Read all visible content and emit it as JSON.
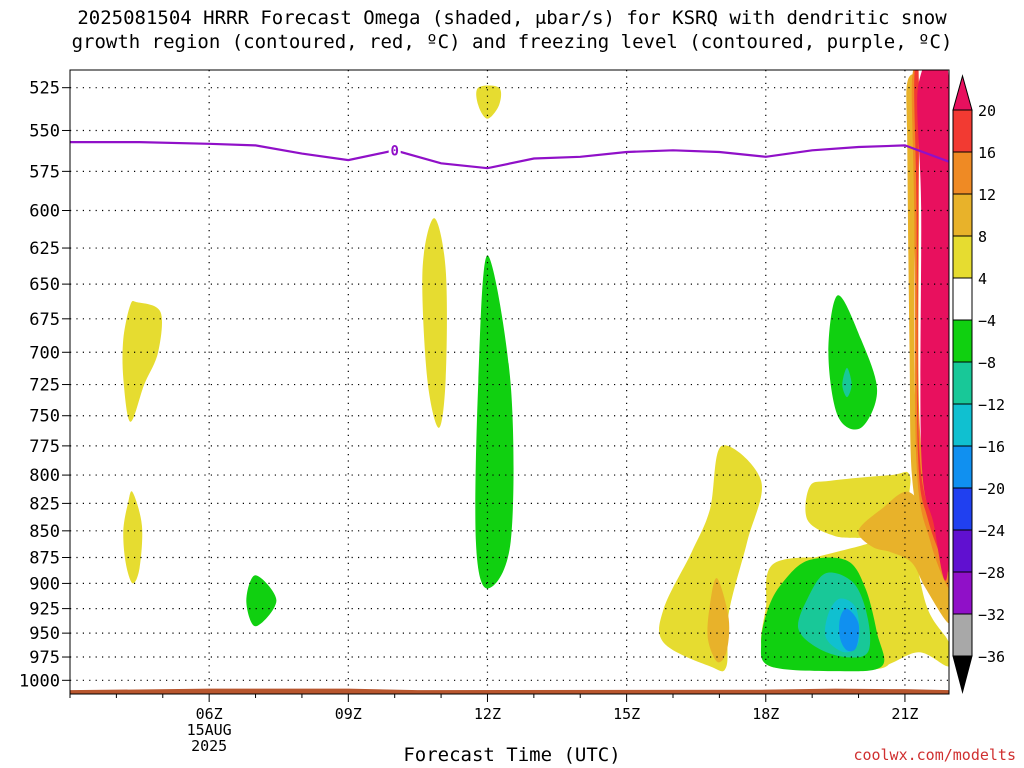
{
  "title": "2025081504 HRRR Forecast Omega (shaded, μbar/s) for KSRQ with dendritic snow\ngrowth region (contoured, red, ºC) and freezing level (contoured, purple, ºC)",
  "credit": "coolwx.com/modelts",
  "chart_data": {
    "type": "time-height contour",
    "xlabel": "Forecast Time (UTC)",
    "ylabel": "",
    "x_ticks": [
      "06Z",
      "09Z",
      "12Z",
      "15Z",
      "18Z",
      "21Z"
    ],
    "x_date_label": [
      "15AUG",
      "2025"
    ],
    "x_range_hours": [
      3.0,
      21.95
    ],
    "x_tick_hours": [
      6,
      9,
      12,
      15,
      18,
      21
    ],
    "y_ticks": [
      525,
      550,
      575,
      600,
      625,
      650,
      675,
      700,
      725,
      750,
      775,
      800,
      825,
      850,
      875,
      900,
      925,
      950,
      975,
      1000
    ],
    "y_range_hPa": [
      515,
      1015
    ],
    "y_log_scale": true,
    "grid": true,
    "colorbar": {
      "ticks": [
        "20",
        "16",
        "12",
        "8",
        "4",
        "−4",
        "−8",
        "−12",
        "−16",
        "−20",
        "−24",
        "−28",
        "−32",
        "−36"
      ],
      "colors": [
        "#e8105e",
        "#f23a32",
        "#ef8a24",
        "#e8b22a",
        "#e6dc30",
        "#ffffff",
        "#10d010",
        "#18c898",
        "#10c0d0",
        "#1090f0",
        "#2040f0",
        "#6010d0",
        "#9010c8",
        "#a8a8a8",
        "#000000"
      ]
    },
    "freezing_level": {
      "label": "0",
      "color": "#9010c8",
      "points": [
        [
          3.0,
          557
        ],
        [
          4.5,
          557
        ],
        [
          6.0,
          558
        ],
        [
          7.0,
          559
        ],
        [
          8.0,
          564
        ],
        [
          9.0,
          568
        ],
        [
          10.0,
          562
        ],
        [
          11.0,
          570
        ],
        [
          12.0,
          573
        ],
        [
          13.0,
          567
        ],
        [
          14.0,
          566
        ],
        [
          15.0,
          563
        ],
        [
          16.0,
          562
        ],
        [
          17.0,
          563
        ],
        [
          18.0,
          566
        ],
        [
          19.0,
          562
        ],
        [
          20.0,
          560
        ],
        [
          21.0,
          559
        ],
        [
          21.95,
          569
        ]
      ]
    },
    "omega_regions": [
      {
        "level": "4",
        "color": "#e6dc30",
        "points": [
          [
            4.45,
            663
          ],
          [
            4.95,
            670
          ],
          [
            4.9,
            700
          ],
          [
            4.6,
            725
          ],
          [
            4.3,
            755
          ],
          [
            4.15,
            720
          ],
          [
            4.15,
            690
          ],
          [
            4.3,
            665
          ]
        ]
      },
      {
        "level": "4",
        "color": "#e6dc30",
        "points": [
          [
            4.35,
            815
          ],
          [
            4.55,
            845
          ],
          [
            4.5,
            885
          ],
          [
            4.35,
            900
          ],
          [
            4.2,
            880
          ],
          [
            4.15,
            850
          ],
          [
            4.25,
            825
          ]
        ]
      },
      {
        "level": "4",
        "color": "#e6dc30",
        "points": [
          [
            11.8,
            525
          ],
          [
            12.25,
            525
          ],
          [
            12.25,
            535
          ],
          [
            12.0,
            543
          ],
          [
            11.8,
            535
          ]
        ]
      },
      {
        "level": "4",
        "color": "#e6dc30",
        "points": [
          [
            10.85,
            605
          ],
          [
            11.1,
            640
          ],
          [
            11.1,
            720
          ],
          [
            10.95,
            760
          ],
          [
            10.7,
            720
          ],
          [
            10.6,
            640
          ]
        ]
      },
      {
        "level": "-4",
        "color": "#10d010",
        "points": [
          [
            12.0,
            630
          ],
          [
            12.5,
            725
          ],
          [
            12.5,
            860
          ],
          [
            12.0,
            905
          ],
          [
            11.75,
            860
          ],
          [
            11.8,
            725
          ]
        ]
      },
      {
        "level": "-4",
        "color": "#10d010",
        "points": [
          [
            7.0,
            892
          ],
          [
            7.45,
            917
          ],
          [
            7.0,
            943
          ],
          [
            6.8,
            917
          ]
        ]
      },
      {
        "level": "4",
        "color": "#e6dc30",
        "points": [
          [
            17.05,
            775
          ],
          [
            17.9,
            805
          ],
          [
            17.6,
            860
          ],
          [
            17.2,
            930
          ],
          [
            17.15,
            985
          ],
          [
            16.8,
            985
          ],
          [
            15.8,
            960
          ],
          [
            15.8,
            925
          ],
          [
            16.4,
            870
          ],
          [
            16.8,
            830
          ]
        ]
      },
      {
        "level": "8",
        "color": "#e8b22a",
        "points": [
          [
            16.95,
            895
          ],
          [
            17.2,
            935
          ],
          [
            17.15,
            970
          ],
          [
            16.95,
            980
          ],
          [
            16.75,
            955
          ],
          [
            16.8,
            920
          ]
        ]
      },
      {
        "level": "-4",
        "color": "#10d010",
        "points": [
          [
            19.55,
            658
          ],
          [
            20.05,
            690
          ],
          [
            20.4,
            730
          ],
          [
            20.05,
            760
          ],
          [
            19.55,
            750
          ],
          [
            19.35,
            700
          ]
        ]
      },
      {
        "level": "-8",
        "color": "#18c898",
        "points": [
          [
            19.75,
            712
          ],
          [
            19.85,
            725
          ],
          [
            19.75,
            735
          ],
          [
            19.65,
            725
          ]
        ]
      },
      {
        "level": "4",
        "color": "#e6dc30",
        "points": [
          [
            18.2,
            890
          ],
          [
            18.6,
            935
          ],
          [
            19.0,
            970
          ],
          [
            19.6,
            985
          ],
          [
            20.5,
            985
          ],
          [
            21.3,
            970
          ],
          [
            21.95,
            985
          ],
          [
            21.95,
            960
          ],
          [
            21.45,
            920
          ],
          [
            21.1,
            835
          ],
          [
            21.1,
            800
          ],
          [
            20.7,
            800
          ],
          [
            19.4,
            805
          ],
          [
            18.95,
            810
          ],
          [
            18.9,
            840
          ],
          [
            19.5,
            855
          ],
          [
            20.3,
            860
          ]
        ]
      },
      {
        "level": "8",
        "color": "#e8b22a",
        "points": [
          [
            20.0,
            850
          ],
          [
            20.5,
            830
          ],
          [
            21.1,
            815
          ],
          [
            21.6,
            850
          ],
          [
            21.95,
            910
          ],
          [
            21.95,
            940
          ],
          [
            21.45,
            905
          ],
          [
            21.15,
            880
          ],
          [
            20.7,
            870
          ],
          [
            20.3,
            865
          ]
        ]
      },
      {
        "level": "8",
        "color": "#e8b22a",
        "points": [
          [
            21.05,
            522
          ],
          [
            21.3,
            522
          ],
          [
            21.3,
            560
          ],
          [
            21.2,
            640
          ],
          [
            21.25,
            760
          ],
          [
            21.55,
            830
          ],
          [
            21.95,
            870
          ],
          [
            21.95,
            915
          ],
          [
            21.4,
            850
          ],
          [
            21.15,
            800
          ],
          [
            21.1,
            700
          ],
          [
            21.05,
            560
          ]
        ]
      },
      {
        "level": "12",
        "color": "#ef8a24",
        "points": [
          [
            21.15,
            522
          ],
          [
            21.3,
            522
          ],
          [
            21.3,
            600
          ],
          [
            21.32,
            760
          ],
          [
            21.65,
            840
          ],
          [
            21.95,
            875
          ],
          [
            21.95,
            905
          ],
          [
            21.55,
            860
          ],
          [
            21.25,
            790
          ],
          [
            21.2,
            600
          ]
        ]
      },
      {
        "level": "16",
        "color": "#f23a32",
        "points": [
          [
            21.2,
            522
          ],
          [
            21.3,
            522
          ],
          [
            21.3,
            770
          ],
          [
            21.7,
            845
          ],
          [
            21.95,
            870
          ],
          [
            21.95,
            890
          ],
          [
            21.5,
            840
          ],
          [
            21.28,
            780
          ],
          [
            21.25,
            600
          ]
        ]
      },
      {
        "level": "20",
        "color": "#e8105e",
        "points": [
          [
            21.3,
            522
          ],
          [
            21.95,
            522
          ],
          [
            21.95,
            870
          ],
          [
            21.6,
            840
          ],
          [
            21.35,
            780
          ],
          [
            21.35,
            600
          ]
        ]
      },
      {
        "level": "4",
        "color": "#e6dc30",
        "points": [
          [
            18.2,
            880
          ],
          [
            19.8,
            878
          ],
          [
            20.35,
            900
          ],
          [
            20.6,
            945
          ],
          [
            20.6,
            985
          ],
          [
            19.3,
            985
          ],
          [
            18.1,
            985
          ],
          [
            17.9,
            960
          ],
          [
            18.0,
            925
          ]
        ]
      },
      {
        "level": "-4",
        "color": "#10d010",
        "points": [
          [
            18.9,
            878
          ],
          [
            19.75,
            878
          ],
          [
            20.15,
            905
          ],
          [
            20.4,
            950
          ],
          [
            20.5,
            985
          ],
          [
            19.5,
            990
          ],
          [
            18.1,
            985
          ],
          [
            17.9,
            960
          ],
          [
            18.05,
            925
          ],
          [
            18.35,
            900
          ]
        ]
      },
      {
        "level": "-8",
        "color": "#18c898",
        "points": [
          [
            19.3,
            890
          ],
          [
            19.9,
            900
          ],
          [
            20.2,
            935
          ],
          [
            20.2,
            970
          ],
          [
            19.7,
            975
          ],
          [
            19.1,
            965
          ],
          [
            18.7,
            945
          ],
          [
            18.9,
            915
          ]
        ]
      },
      {
        "level": "-12",
        "color": "#10c0d0",
        "points": [
          [
            19.6,
            915
          ],
          [
            19.95,
            925
          ],
          [
            20.0,
            960
          ],
          [
            19.7,
            970
          ],
          [
            19.3,
            955
          ],
          [
            19.35,
            930
          ]
        ]
      },
      {
        "level": "-16",
        "color": "#1090f0",
        "points": [
          [
            19.75,
            925
          ],
          [
            20.0,
            940
          ],
          [
            19.95,
            965
          ],
          [
            19.75,
            968
          ],
          [
            19.6,
            955
          ],
          [
            19.6,
            935
          ]
        ]
      }
    ],
    "surface": {
      "color": "#b8562e",
      "pressure_hPa": 1013
    }
  }
}
